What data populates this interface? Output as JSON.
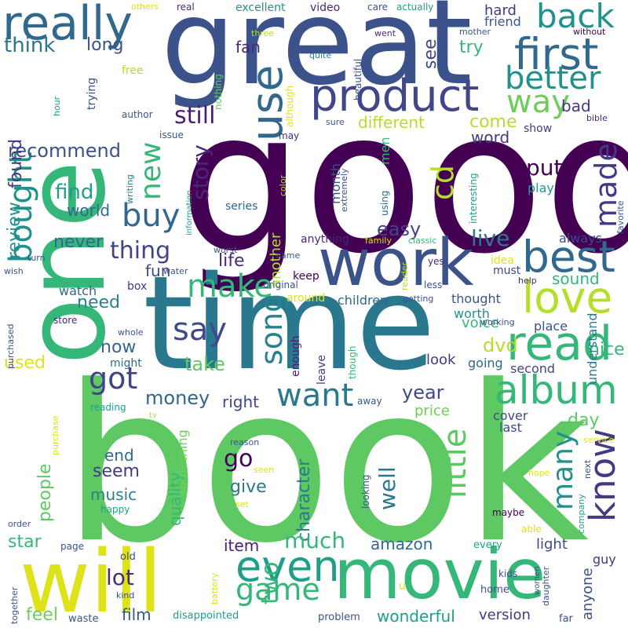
{
  "background": "#ffffff",
  "palette": {
    "deep_purple": "#440154",
    "indigo": "#3b528b",
    "blue": "#31688e",
    "teal": "#21918c",
    "sea_green": "#1f9e89",
    "green": "#35b779",
    "light_green": "#6ece58",
    "lime": "#b5de2b",
    "yellow": "#fde725"
  },
  "words": [
    {
      "text": "book",
      "color": "#5ec962"
    },
    {
      "text": "good",
      "color": "#440154"
    },
    {
      "text": "time",
      "color": "#2a788e"
    },
    {
      "text": "one",
      "color": "#35b779"
    },
    {
      "text": "great",
      "color": "#3b528b"
    },
    {
      "text": "work",
      "color": "#3b528b"
    },
    {
      "text": "movie",
      "color": "#35b779"
    },
    {
      "text": "will",
      "color": "#dde318"
    },
    {
      "text": "product",
      "color": "#404688"
    },
    {
      "text": "read",
      "color": "#35b779"
    },
    {
      "text": "album",
      "color": "#35b779"
    },
    {
      "text": "love",
      "color": "#b5de2b"
    },
    {
      "text": "best",
      "color": "#31688e"
    },
    {
      "text": "really",
      "color": "#31688e"
    },
    {
      "text": "first",
      "color": "#31688e"
    },
    {
      "text": "even",
      "color": "#1f9e89"
    },
    {
      "text": "back",
      "color": "#21918c"
    },
    {
      "text": "better",
      "color": "#21918c"
    },
    {
      "text": "way",
      "color": "#6ece58"
    },
    {
      "text": "use",
      "color": "#31688e"
    },
    {
      "text": "know",
      "color": "#443983"
    },
    {
      "text": "made",
      "color": "#443983"
    },
    {
      "text": "bought",
      "color": "#21918c"
    },
    {
      "text": "buy",
      "color": "#31688e"
    },
    {
      "text": "new",
      "color": "#35b779"
    },
    {
      "text": "want",
      "color": "#2a788e"
    },
    {
      "text": "say",
      "color": "#3e4989"
    },
    {
      "text": "song",
      "color": "#26828e"
    },
    {
      "text": "make",
      "color": "#35b779"
    },
    {
      "text": "got",
      "color": "#414487"
    },
    {
      "text": "little",
      "color": "#5ec962"
    },
    {
      "text": "many",
      "color": "#21918c"
    },
    {
      "text": "game",
      "color": "#35b779"
    },
    {
      "text": "cd",
      "color": "#b5de2b"
    },
    {
      "text": "still",
      "color": "#481f70"
    },
    {
      "text": "story",
      "color": "#482878"
    },
    {
      "text": "thing",
      "color": "#414487"
    },
    {
      "text": "think",
      "color": "#2a788e"
    },
    {
      "text": "long",
      "color": "#3b528b"
    },
    {
      "text": "recommend",
      "color": "#3b528b"
    },
    {
      "text": "find",
      "color": "#1f9e89"
    },
    {
      "text": "review",
      "color": "#21918c"
    },
    {
      "text": "world",
      "color": "#31688e"
    },
    {
      "text": "found",
      "color": "#443983"
    },
    {
      "text": "never",
      "color": "#31688e"
    },
    {
      "text": "money",
      "color": "#31688e"
    },
    {
      "text": "see",
      "color": "#3e4989"
    },
    {
      "text": "try",
      "color": "#35b779"
    },
    {
      "text": "hard",
      "color": "#443983"
    },
    {
      "text": "friend",
      "color": "#3b528b"
    },
    {
      "text": "fan",
      "color": "#482878"
    },
    {
      "text": "different",
      "color": "#b5de2b"
    },
    {
      "text": "come",
      "color": "#b5de2b"
    },
    {
      "text": "word",
      "color": "#443983"
    },
    {
      "text": "bad",
      "color": "#443983"
    },
    {
      "text": "put",
      "color": "#440154"
    },
    {
      "text": "play",
      "color": "#1f9e89"
    },
    {
      "text": "live",
      "color": "#2a788e"
    },
    {
      "text": "easy",
      "color": "#414487"
    },
    {
      "text": "life",
      "color": "#482878"
    },
    {
      "text": "sound",
      "color": "#35b779"
    },
    {
      "text": "dvd",
      "color": "#b5de2b"
    },
    {
      "text": "take",
      "color": "#5ec962"
    },
    {
      "text": "now",
      "color": "#31688e"
    },
    {
      "text": "nice",
      "color": "#35b779"
    },
    {
      "text": "year",
      "color": "#3e4989"
    },
    {
      "text": "day",
      "color": "#5ec962"
    },
    {
      "text": "price",
      "color": "#6ece58"
    },
    {
      "text": "right",
      "color": "#404688"
    },
    {
      "text": "go",
      "color": "#440154"
    },
    {
      "text": "give",
      "color": "#2a788e"
    },
    {
      "text": "well",
      "color": "#2a788e"
    },
    {
      "text": "character",
      "color": "#2a788e"
    },
    {
      "text": "seem",
      "color": "#443983"
    },
    {
      "text": "much",
      "color": "#35b779"
    },
    {
      "text": "amazon",
      "color": "#31688e"
    },
    {
      "text": "lot",
      "color": "#472d7b"
    },
    {
      "text": "two",
      "color": "#35b779"
    },
    {
      "text": "people",
      "color": "#5ec962"
    },
    {
      "text": "end",
      "color": "#31688e"
    },
    {
      "text": "music",
      "color": "#26828e"
    },
    {
      "text": "need",
      "color": "#26828e"
    },
    {
      "text": "watch",
      "color": "#31688e"
    },
    {
      "text": "star",
      "color": "#35b779"
    },
    {
      "text": "used",
      "color": "#dde318"
    },
    {
      "text": "feel",
      "color": "#6ece58"
    },
    {
      "text": "film",
      "color": "#3b528b"
    },
    {
      "text": "item",
      "color": "#481f70"
    },
    {
      "text": "quality",
      "color": "#35b779"
    },
    {
      "text": "fun",
      "color": "#3e4989"
    },
    {
      "text": "wonderful",
      "color": "#1f9e89"
    },
    {
      "text": "version",
      "color": "#443983"
    },
    {
      "text": "light",
      "color": "#3e4989"
    },
    {
      "text": "look",
      "color": "#443983"
    },
    {
      "text": "anyone",
      "color": "#3b528b"
    },
    {
      "text": "guy",
      "color": "#443983"
    },
    {
      "text": "second",
      "color": "#3e4989"
    },
    {
      "text": "cover",
      "color": "#3e4989"
    },
    {
      "text": "last",
      "color": "#3e4989"
    },
    {
      "text": "going",
      "color": "#31688e"
    },
    {
      "text": "thought",
      "color": "#3b528b"
    },
    {
      "text": "voice",
      "color": "#35b779"
    },
    {
      "text": "place",
      "color": "#3b528b"
    },
    {
      "text": "worth",
      "color": "#21918c"
    },
    {
      "text": "always",
      "color": "#3e4989"
    },
    {
      "text": "must",
      "color": "#3e4989"
    },
    {
      "text": "show",
      "color": "#443983"
    },
    {
      "text": "understand",
      "color": "#2a788e"
    },
    {
      "text": "something",
      "color": "#6ece58"
    },
    {
      "text": "another",
      "color": "#b5de2b"
    },
    {
      "text": "anything",
      "color": "#482878"
    },
    {
      "text": "children",
      "color": "#31688e"
    },
    {
      "text": "enough",
      "color": "#481f70"
    },
    {
      "text": "might",
      "color": "#31688e"
    },
    {
      "text": "leave",
      "color": "#443983"
    },
    {
      "text": "month",
      "color": "#3b528b"
    },
    {
      "text": "men",
      "color": "#35b779"
    },
    {
      "text": "series",
      "color": "#31688e"
    },
    {
      "text": "keep",
      "color": "#440154"
    },
    {
      "text": "around",
      "color": "#dde318"
    },
    {
      "text": "idea",
      "color": "#dde318"
    },
    {
      "text": "excellent",
      "color": "#21918c"
    },
    {
      "text": "video",
      "color": "#482878"
    },
    {
      "text": "real",
      "color": "#482878"
    },
    {
      "text": "care",
      "color": "#3b528b"
    },
    {
      "text": "actually",
      "color": "#1f9e89"
    },
    {
      "text": "others",
      "color": "#dde318"
    },
    {
      "text": "three",
      "color": "#b5de2b"
    },
    {
      "text": "went",
      "color": "#482878"
    },
    {
      "text": "mother",
      "color": "#3b528b"
    },
    {
      "text": "without",
      "color": "#440154"
    },
    {
      "text": "quite",
      "color": "#26828e"
    },
    {
      "text": "beautiful",
      "color": "#3b528b"
    },
    {
      "text": "free",
      "color": "#b5de2b"
    },
    {
      "text": "trying",
      "color": "#3b528b"
    },
    {
      "text": "nothing",
      "color": "#5ec962"
    },
    {
      "text": "hour",
      "color": "#1f9e89"
    },
    {
      "text": "author",
      "color": "#3b528b"
    },
    {
      "text": "although",
      "color": "#dde318"
    },
    {
      "text": "sure",
      "color": "#3b528b"
    },
    {
      "text": "bible",
      "color": "#482878"
    },
    {
      "text": "issue",
      "color": "#3b528b"
    },
    {
      "text": "may",
      "color": "#482878"
    },
    {
      "text": "color",
      "color": "#b5de2b"
    },
    {
      "text": "writing",
      "color": "#26828e"
    },
    {
      "text": "information",
      "color": "#1f9e89"
    },
    {
      "text": "extremely",
      "color": "#3b528b"
    },
    {
      "text": "using",
      "color": "#31688e"
    },
    {
      "text": "interesting",
      "color": "#1f9e89"
    },
    {
      "text": "favorite",
      "color": "#3b528b"
    },
    {
      "text": "worst",
      "color": "#3b528b"
    },
    {
      "text": "family",
      "color": "#dde318"
    },
    {
      "text": "classic",
      "color": "#35b779"
    },
    {
      "text": "turn",
      "color": "#3b528b"
    },
    {
      "text": "wish",
      "color": "#3b528b"
    },
    {
      "text": "water",
      "color": "#3b528b"
    },
    {
      "text": "came",
      "color": "#3b528b"
    },
    {
      "text": "original",
      "color": "#3b528b"
    },
    {
      "text": "reader",
      "color": "#b5de2b"
    },
    {
      "text": "yes",
      "color": "#482878"
    },
    {
      "text": "less",
      "color": "#3b528b"
    },
    {
      "text": "getting",
      "color": "#3b528b"
    },
    {
      "text": "help",
      "color": "#482878"
    },
    {
      "text": "box",
      "color": "#443983"
    },
    {
      "text": "store",
      "color": "#482878"
    },
    {
      "text": "purchased",
      "color": "#3b528b"
    },
    {
      "text": "whole",
      "color": "#3b528b"
    },
    {
      "text": "working",
      "color": "#3b528b"
    },
    {
      "text": "though",
      "color": "#35b779"
    },
    {
      "text": "reading",
      "color": "#1f9e89"
    },
    {
      "text": "purchase",
      "color": "#dde318"
    },
    {
      "text": "tv",
      "color": "#b5de2b"
    },
    {
      "text": "away",
      "color": "#3b528b"
    },
    {
      "text": "reason",
      "color": "#3b528b"
    },
    {
      "text": "seen",
      "color": "#dde318"
    },
    {
      "text": "service",
      "color": "#dde318"
    },
    {
      "text": "next",
      "color": "#3b528b"
    },
    {
      "text": "hope",
      "color": "#dde318"
    },
    {
      "text": "company",
      "color": "#1f9e89"
    },
    {
      "text": "happy",
      "color": "#1f9e89"
    },
    {
      "text": "order",
      "color": "#3b528b"
    },
    {
      "text": "page",
      "color": "#3b528b"
    },
    {
      "text": "set",
      "color": "#dde318"
    },
    {
      "text": "maybe",
      "color": "#440154"
    },
    {
      "text": "able",
      "color": "#dde318"
    },
    {
      "text": "every",
      "color": "#1f9e89"
    },
    {
      "text": "old",
      "color": "#3b528b"
    },
    {
      "text": "kind",
      "color": "#3b528b"
    },
    {
      "text": "battery",
      "color": "#dde318"
    },
    {
      "text": "together",
      "color": "#3b528b"
    },
    {
      "text": "waste",
      "color": "#3b528b"
    },
    {
      "text": "disappointed",
      "color": "#1f9e89"
    },
    {
      "text": "problem",
      "color": "#3b528b"
    },
    {
      "text": "home",
      "color": "#3b528b"
    },
    {
      "text": "kids",
      "color": "#3b528b"
    },
    {
      "text": "women",
      "color": "#3b528b"
    },
    {
      "text": "daughter",
      "color": "#3b528b"
    },
    {
      "text": "far",
      "color": "#3b528b"
    },
    {
      "text": "u",
      "color": "#dde318"
    },
    {
      "text": "looking",
      "color": "#3b528b"
    }
  ]
}
